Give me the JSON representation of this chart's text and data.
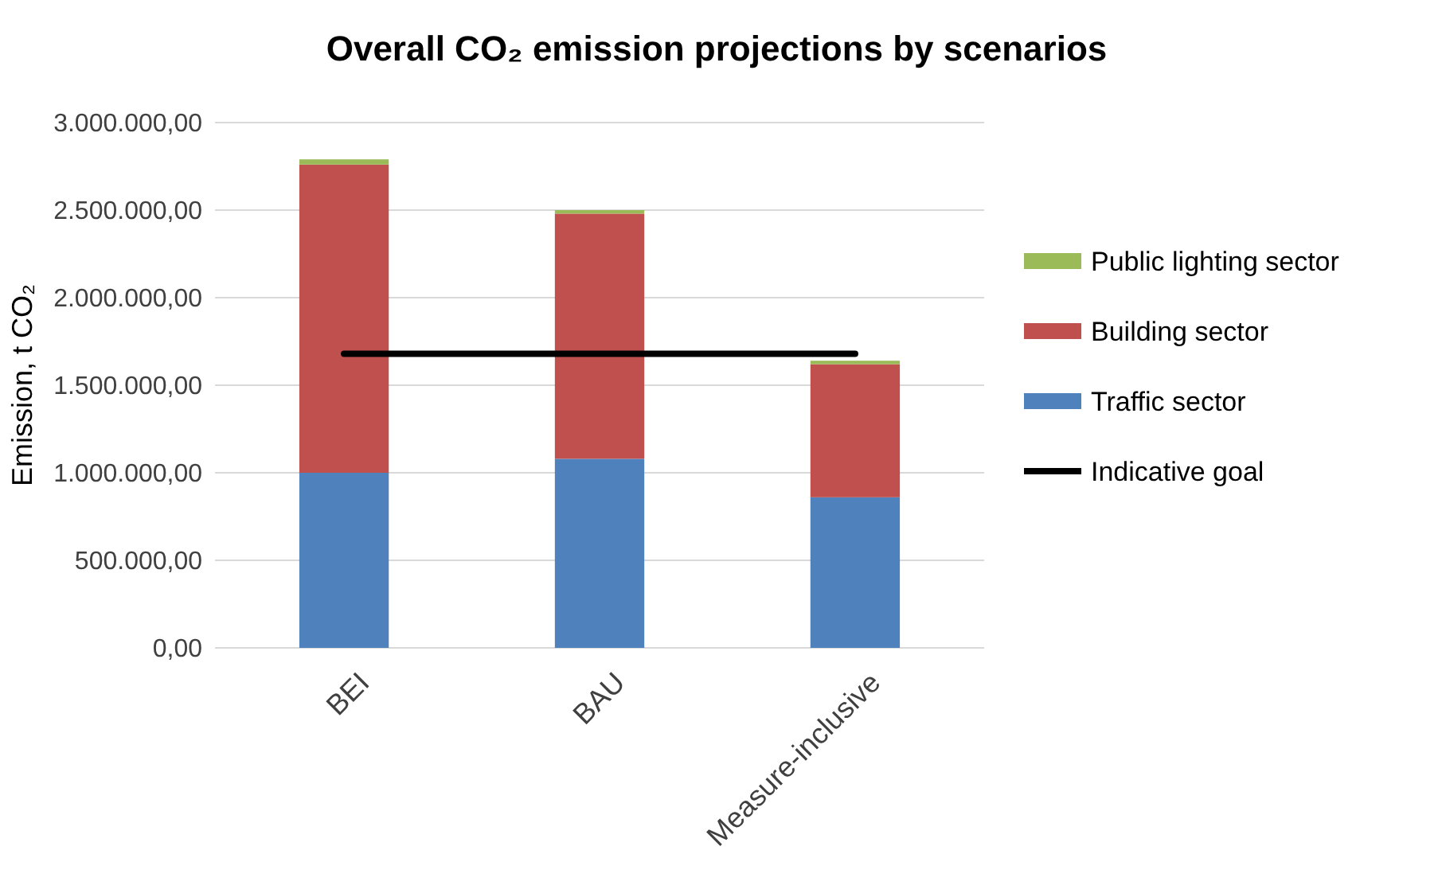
{
  "chart_data": {
    "type": "bar",
    "title": "Overall CO₂ emission projections by scenarios",
    "ylabel": "Emission, t CO₂",
    "categories": [
      "BEI",
      "BAU",
      "Measure-inclusive"
    ],
    "stacked": true,
    "series": [
      {
        "name": "Traffic sector",
        "color": "#4f81bd",
        "values": [
          1000000,
          1080000,
          860000
        ]
      },
      {
        "name": "Building sector",
        "color": "#c0504d",
        "values": [
          1760000,
          1400000,
          760000
        ]
      },
      {
        "name": "Public lighting sector",
        "color": "#9bbb59",
        "values": [
          30000,
          20000,
          20000
        ]
      },
      {
        "name": "Indicative goal",
        "type": "line",
        "color": "#000000",
        "values": [
          1680000,
          1680000,
          1680000
        ]
      }
    ],
    "ylim": [
      0,
      3000000
    ],
    "yticks": [
      {
        "value": 0,
        "label": "0,00"
      },
      {
        "value": 500000,
        "label": "500.000,00"
      },
      {
        "value": 1000000,
        "label": "1.000.000,00"
      },
      {
        "value": 1500000,
        "label": "1.500.000,00"
      },
      {
        "value": 2000000,
        "label": "2.000.000,00"
      },
      {
        "value": 2500000,
        "label": "2.500.000,00"
      },
      {
        "value": 3000000,
        "label": "3.000.000,00"
      }
    ],
    "grid": "y",
    "legend": "right",
    "marker": "none"
  }
}
